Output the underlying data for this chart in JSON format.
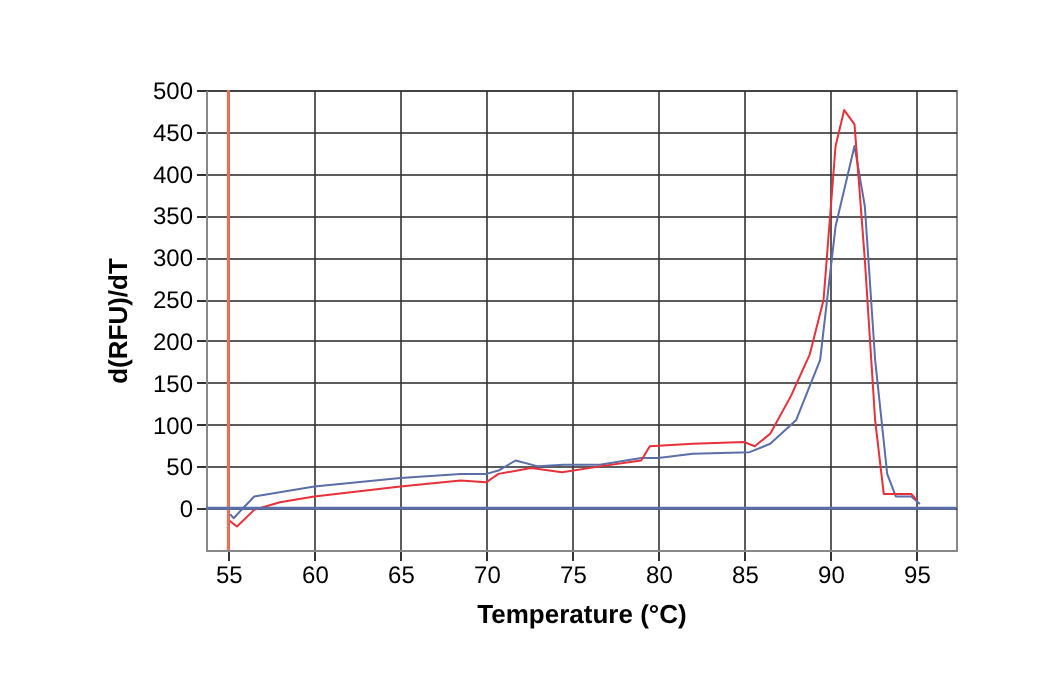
{
  "chart_data": {
    "type": "line",
    "xlabel": "Temperature (°C)",
    "ylabel": "d(RFU)/dT",
    "xlim": [
      53.7,
      97.3
    ],
    "ylim": [
      -50,
      500
    ],
    "xticks": [
      55,
      60,
      65,
      70,
      75,
      80,
      85,
      90,
      95
    ],
    "yticks": [
      0,
      50,
      100,
      150,
      200,
      250,
      300,
      350,
      400,
      450,
      500
    ],
    "grid": true,
    "legend": false,
    "marker": "none",
    "line_style": "solid",
    "ref_lines": [
      {
        "axis": "x",
        "value": 55,
        "label": null,
        "color": "#e8735a"
      },
      {
        "axis": "y",
        "value": 0,
        "label": null,
        "color": "#5a6ea8"
      }
    ],
    "series": [
      {
        "color": "#5a6ea8",
        "x": [
          55.1,
          55.3,
          56.5,
          60,
          65,
          68.5,
          70,
          70.7,
          71.7,
          73,
          74.5,
          76.6,
          79,
          80,
          82,
          85.3,
          86.5,
          88,
          89.4,
          90.3,
          91.4,
          92,
          92.6,
          93.3,
          93.8,
          94.7,
          95.2
        ],
        "values": [
          -7,
          -12,
          14,
          26,
          36,
          41,
          41,
          45,
          57,
          50,
          52,
          52,
          60,
          60,
          65,
          67,
          77,
          105,
          177,
          337,
          433,
          361,
          177,
          41,
          14,
          14,
          5
        ]
      },
      {
        "color": "#e8303a",
        "x": [
          55,
          55.5,
          56.5,
          58,
          60,
          65,
          68.5,
          70,
          70.7,
          72.6,
          74.4,
          76.6,
          79,
          79.5,
          82,
          85,
          85.6,
          86.5,
          87.7,
          88.8,
          89.6,
          90.3,
          90.8,
          91.4,
          92,
          92.6,
          93.1,
          93.8,
          94.7,
          95
        ],
        "values": [
          -14,
          -22,
          -2,
          7,
          14,
          26,
          33,
          31,
          41,
          48,
          43,
          50,
          57,
          74,
          77,
          79,
          74,
          89,
          134,
          184,
          249,
          433,
          476,
          459,
          297,
          105,
          17,
          17,
          17,
          10
        ]
      }
    ]
  }
}
